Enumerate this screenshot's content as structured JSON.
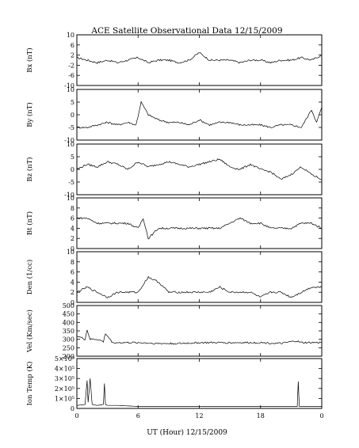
{
  "chart_data": {
    "type": "line",
    "title": "ACE Satellite Observational Data   12/15/2009",
    "xlabel": "UT (Hour)  12/15/2009",
    "x_ticks": [
      "0",
      "6",
      "12",
      "18",
      "0"
    ],
    "xlim": [
      0,
      24
    ],
    "grid": false,
    "panels": [
      {
        "ylabel": "Bx (nT)",
        "ylim": [
          -10,
          10
        ],
        "y_ticks": [
          "10",
          "6",
          "2",
          "-2",
          "-6",
          "-10"
        ],
        "y_tick_values": [
          10,
          6,
          2,
          -2,
          -6,
          -10
        ],
        "series": [
          {
            "x": [
              0,
              1,
              2,
              3,
              4,
              5,
              6,
              7,
              8,
              9,
              10,
              11,
              12,
              13,
              14,
              15,
              16,
              17,
              18,
              19,
              20,
              21,
              22,
              23,
              24
            ],
            "values": [
              1,
              0,
              -1,
              0,
              -1,
              0,
              1,
              -1,
              0,
              0,
              -1,
              0,
              3,
              0,
              0,
              0,
              -1,
              0,
              0,
              -1,
              0,
              0,
              1,
              0,
              2
            ]
          }
        ]
      },
      {
        "ylabel": "By (nT)",
        "ylim": [
          -10,
          10
        ],
        "y_ticks": [
          "10",
          "5",
          "0",
          "-5",
          "-10"
        ],
        "y_tick_values": [
          10,
          5,
          0,
          -5,
          -10
        ],
        "series": [
          {
            "x": [
              0,
              1,
              2,
              3,
              4,
              5,
              5.8,
              6.3,
              7,
              8,
              9,
              10,
              11,
              12,
              13,
              14,
              15,
              16,
              17,
              18,
              19,
              20,
              21,
              22,
              23,
              23.5,
              24
            ],
            "values": [
              -5,
              -5,
              -4,
              -3,
              -4,
              -3,
              -4,
              5,
              0,
              -2,
              -3,
              -3,
              -4,
              -2,
              -4,
              -3,
              -3,
              -4,
              -4,
              -4,
              -5,
              -4,
              -4,
              -5,
              2,
              -3,
              3
            ]
          }
        ]
      },
      {
        "ylabel": "Bz (nT)",
        "ylim": [
          -10,
          10
        ],
        "y_ticks": [
          "10",
          "5",
          "0",
          "-5",
          "-10"
        ],
        "y_tick_values": [
          10,
          5,
          0,
          -5,
          -10
        ],
        "series": [
          {
            "x": [
              0,
              1,
              2,
              3,
              4,
              5,
              6,
              7,
              8,
              9,
              10,
              11,
              12,
              13,
              14,
              15,
              16,
              17,
              18,
              19,
              20,
              21,
              22,
              23,
              24
            ],
            "values": [
              0,
              2,
              1,
              3,
              2,
              0,
              3,
              1,
              2,
              3,
              2,
              1,
              2,
              3,
              4,
              1,
              0,
              2,
              0,
              -1,
              -4,
              -2,
              1,
              -2,
              -4
            ]
          }
        ]
      },
      {
        "ylabel": "Bt (nT)",
        "ylim": [
          0,
          10
        ],
        "y_ticks": [
          "10",
          "8",
          "6",
          "4",
          "2",
          "0"
        ],
        "y_tick_values": [
          10,
          8,
          6,
          4,
          2,
          0
        ],
        "series": [
          {
            "x": [
              0,
              1,
              2,
              3,
              4,
              5,
              6,
              6.5,
              7,
              8,
              9,
              10,
              11,
              12,
              13,
              14,
              15,
              16,
              17,
              18,
              19,
              20,
              21,
              22,
              23,
              24
            ],
            "values": [
              6,
              6,
              5,
              5,
              5,
              5,
              4,
              6,
              2,
              4,
              4,
              4,
              4,
              4,
              4,
              4,
              5,
              6,
              5,
              5,
              4,
              4,
              4,
              5,
              5,
              4
            ]
          }
        ]
      },
      {
        "ylabel": "Den (1/cc)",
        "ylim": [
          0,
          10
        ],
        "y_ticks": [
          "10",
          "8",
          "6",
          "4",
          "2",
          "0"
        ],
        "y_tick_values": [
          10,
          8,
          6,
          4,
          2,
          0
        ],
        "series": [
          {
            "x": [
              0,
              1,
              2,
              3,
              4,
              5,
              6,
              7,
              8,
              9,
              10,
              11,
              12,
              13,
              14,
              15,
              16,
              17,
              18,
              19,
              20,
              21,
              22,
              23,
              24
            ],
            "values": [
              2,
              3,
              2,
              1,
              2,
              2,
              2,
              5,
              4,
              2,
              2,
              2,
              2,
              2,
              3,
              2,
              2,
              2,
              1,
              2,
              2,
              1,
              2,
              3,
              3
            ]
          }
        ]
      },
      {
        "ylabel": "Vel (Km/sec)",
        "ylim": [
          200,
          500
        ],
        "y_ticks": [
          "500",
          "450",
          "400",
          "350",
          "300",
          "250",
          "200"
        ],
        "y_tick_values": [
          500,
          450,
          400,
          350,
          300,
          250,
          200
        ],
        "series": [
          {
            "x": [
              0,
              0.8,
              1,
              1.3,
              2,
              2.6,
              2.8,
              3.5,
              4,
              5,
              6,
              8,
              10,
              12,
              14,
              16,
              18,
              20,
              21.5,
              22,
              24
            ],
            "values": [
              320,
              300,
              355,
              300,
              300,
              285,
              335,
              280,
              280,
              280,
              280,
              275,
              275,
              280,
              280,
              280,
              280,
              275,
              290,
              280,
              280
            ]
          }
        ]
      },
      {
        "ylabel": "Ion Temp (K)",
        "ylim": [
          0,
          500000
        ],
        "y_ticks": [
          "5×10⁵",
          "4×10⁵",
          "3×10⁵",
          "2×10⁵",
          "1×10⁵",
          "0"
        ],
        "y_tick_values": [
          500000,
          400000,
          300000,
          200000,
          100000,
          0
        ],
        "series": [
          {
            "x": [
              0,
              0.8,
              1,
              1.1,
              1.3,
              1.5,
              2,
              2.6,
              2.7,
              2.8,
              3,
              4,
              6,
              10,
              14,
              18,
              20,
              21.6,
              21.7,
              21.8,
              22,
              24
            ],
            "values": [
              30000,
              40000,
              280000,
              60000,
              300000,
              40000,
              30000,
              40000,
              250000,
              40000,
              30000,
              30000,
              20000,
              20000,
              20000,
              20000,
              20000,
              20000,
              270000,
              20000,
              20000,
              20000
            ]
          }
        ]
      }
    ]
  }
}
